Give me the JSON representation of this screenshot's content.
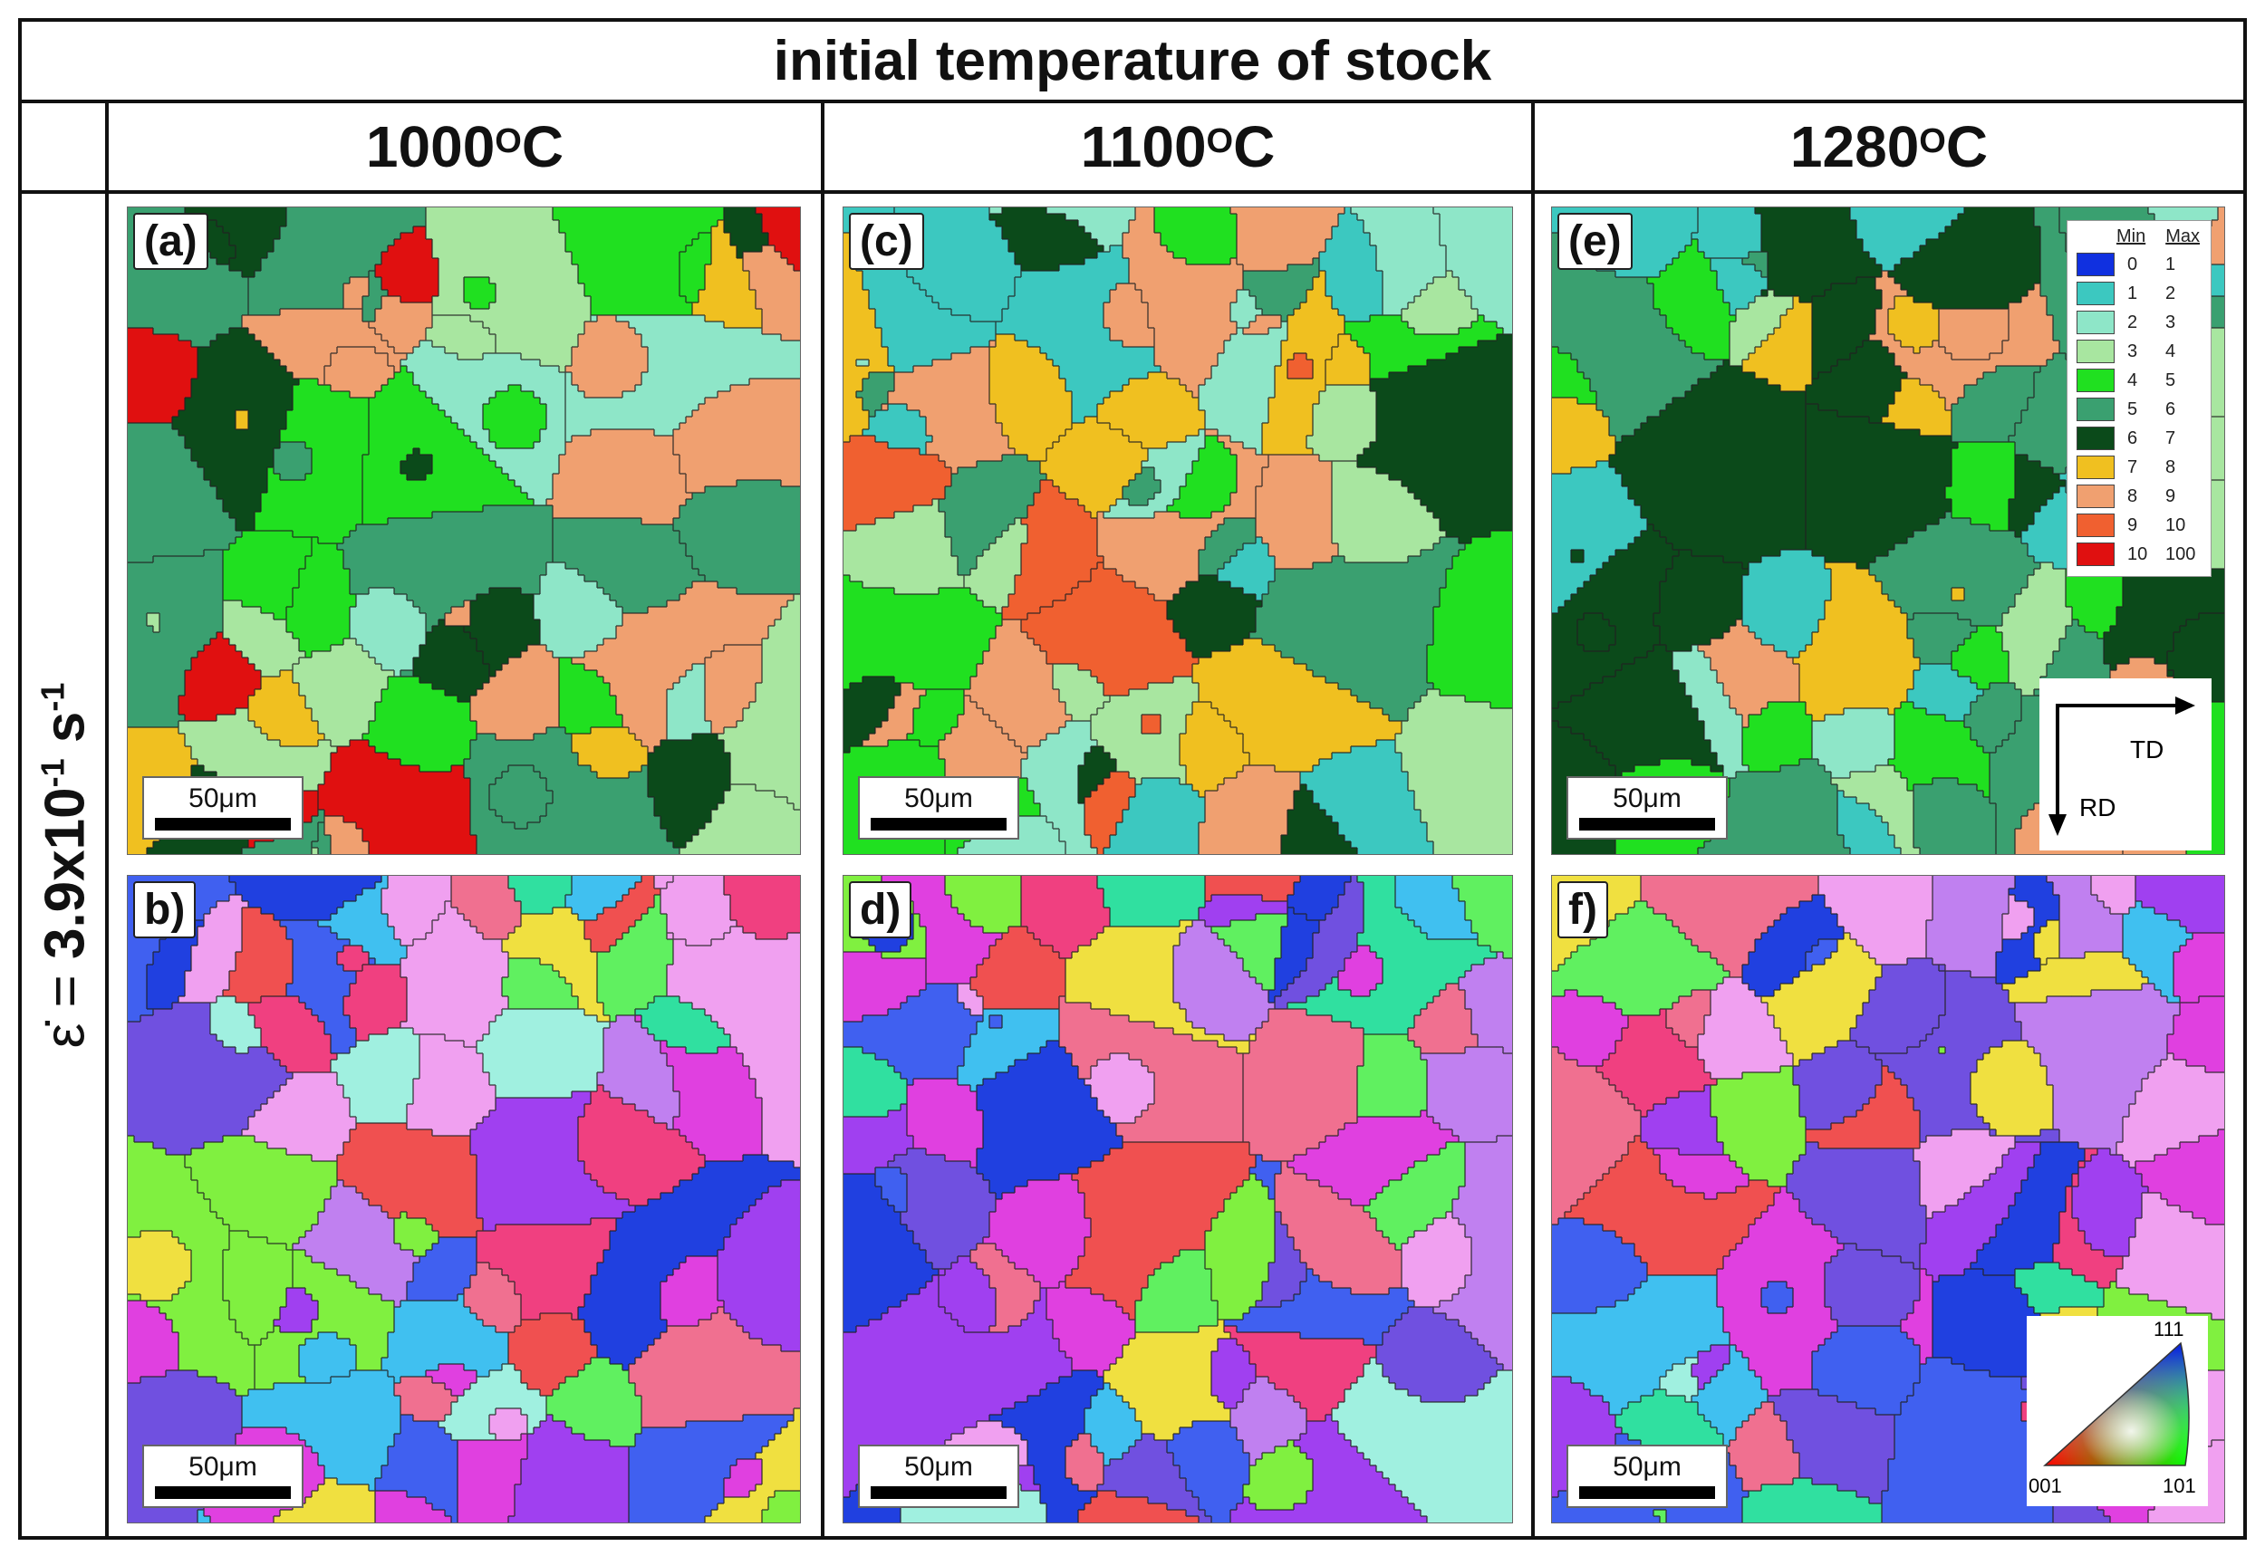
{
  "header": {
    "title": "initial temperature of stock"
  },
  "columns": [
    {
      "label": "1000",
      "sup": "O",
      "unit": "C"
    },
    {
      "label": "1100",
      "sup": "O",
      "unit": "C"
    },
    {
      "label": "1280",
      "sup": "O",
      "unit": "C"
    }
  ],
  "row_label": {
    "symbol": "ε̇",
    "eq": " = ",
    "value": "3.9x10",
    "exp1": "-1",
    "unit": " s",
    "exp2": "-1"
  },
  "panels": {
    "a": {
      "label": "(a)",
      "scale": "50μm"
    },
    "b": {
      "label": "b)",
      "scale": "50μm"
    },
    "c": {
      "label": "(c)",
      "scale": "50μm"
    },
    "d": {
      "label": "d)",
      "scale": "50μm"
    },
    "e": {
      "label": "(e)",
      "scale": "50μm"
    },
    "f": {
      "label": "f)",
      "scale": "50μm"
    }
  },
  "legend": {
    "min_header": "Min",
    "max_header": "Max",
    "rows": [
      {
        "min": "0",
        "max": "1",
        "color": "#1030e0"
      },
      {
        "min": "1",
        "max": "2",
        "color": "#3cc8c0"
      },
      {
        "min": "2",
        "max": "3",
        "color": "#8ee6c8"
      },
      {
        "min": "3",
        "max": "4",
        "color": "#a8e6a0"
      },
      {
        "min": "4",
        "max": "5",
        "color": "#20e020"
      },
      {
        "min": "5",
        "max": "6",
        "color": "#3aa070"
      },
      {
        "min": "6",
        "max": "7",
        "color": "#0b4a1a"
      },
      {
        "min": "7",
        "max": "8",
        "color": "#f0c020"
      },
      {
        "min": "8",
        "max": "9",
        "color": "#f0a070"
      },
      {
        "min": "9",
        "max": "10",
        "color": "#f06030"
      },
      {
        "min": "10",
        "max": "100",
        "color": "#e01010"
      }
    ]
  },
  "axes": {
    "x_label": "TD",
    "y_label": "RD"
  },
  "ipf": {
    "top": "111",
    "left": "001",
    "right": "101"
  },
  "palettes": {
    "kam_a": [
      "#20e020",
      "#a8e6a0",
      "#8ee6c8",
      "#0b4a1a",
      "#3aa070",
      "#f0a070",
      "#e01010",
      "#f0c020"
    ],
    "kam_c": [
      "#3aa070",
      "#a8e6a0",
      "#20e020",
      "#8ee6c8",
      "#0b4a1a",
      "#f0c020",
      "#f06030",
      "#f0a070",
      "#3cc8c0"
    ],
    "kam_e": [
      "#3cc8c0",
      "#8ee6c8",
      "#a8e6a0",
      "#3aa070",
      "#20e020",
      "#0b4a1a",
      "#f0a070",
      "#f0c020"
    ],
    "ipf": [
      "#e040e0",
      "#a040f0",
      "#4060f0",
      "#30e0a0",
      "#f04080",
      "#f0e040",
      "#60f060",
      "#f07090",
      "#c080f0",
      "#40c0f0",
      "#f0a0f0",
      "#2040e0",
      "#80f040",
      "#f05050",
      "#a0f0e0",
      "#7050e0"
    ]
  }
}
